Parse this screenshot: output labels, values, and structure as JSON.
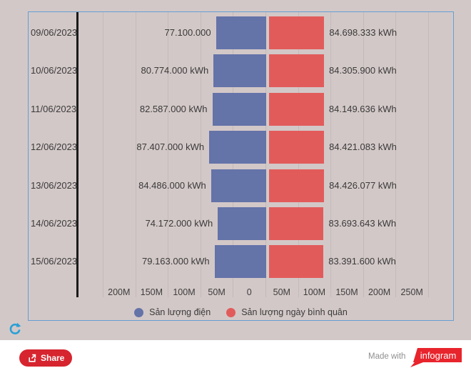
{
  "chart": {
    "rows": [
      {
        "date": "09/06/2023",
        "left_label": "77.100.000",
        "right_label": "84.698.333 kWh"
      },
      {
        "date": "10/06/2023",
        "left_label": "80.774.000 kWh",
        "right_label": "84.305.900 kWh"
      },
      {
        "date": "11/06/2023",
        "left_label": "82.587.000 kWh",
        "right_label": "84.149.636 kWh"
      },
      {
        "date": "12/06/2023",
        "left_label": "87.407.000 kWh",
        "right_label": "84.421.083 kWh"
      },
      {
        "date": "13/06/2023",
        "left_label": "84.486.000 kWh",
        "right_label": "84.426.077 kWh"
      },
      {
        "date": "14/06/2023",
        "left_label": "74.172.000 kWh",
        "right_label": "83.693.643 kWh"
      },
      {
        "date": "15/06/2023",
        "left_label": "79.163.000 kWh",
        "right_label": "83.391.600 kWh"
      }
    ],
    "axis_ticks": [
      "200M",
      "150M",
      "100M",
      "50M",
      "0",
      "50M",
      "100M",
      "150M",
      "200M",
      "250M"
    ],
    "legend": [
      {
        "label": "Sản lượng điện",
        "color": "#6473a8"
      },
      {
        "label": "Sản lượng ngày bình quân",
        "color": "#e25b5b"
      }
    ],
    "colors": {
      "left_bar": "#6473a8",
      "right_bar": "#e25b5b",
      "background": "#d3c8c8",
      "box_border": "#64a0d2",
      "gridline": "#c4baba",
      "axis_line": "#1b1b1b"
    }
  },
  "chart_data": {
    "type": "bar",
    "orientation": "horizontal-diverging",
    "categories": [
      "09/06/2023",
      "10/06/2023",
      "11/06/2023",
      "12/06/2023",
      "13/06/2023",
      "14/06/2023",
      "15/06/2023"
    ],
    "series": [
      {
        "name": "Sản lượng điện",
        "side": "left",
        "color": "#6473a8",
        "values": [
          77100000,
          80774000,
          82587000,
          87407000,
          84486000,
          74172000,
          79163000
        ]
      },
      {
        "name": "Sản lượng ngày bình quân",
        "side": "right",
        "color": "#e25b5b",
        "values": [
          84698333,
          84305900,
          84149636,
          84421083,
          84426077,
          83693643,
          83391600
        ]
      }
    ],
    "unit": "kWh",
    "x_axis": {
      "tick_labels": [
        "200M",
        "150M",
        "100M",
        "50M",
        "0",
        "50M",
        "100M",
        "150M",
        "200M",
        "250M"
      ],
      "grid": true
    },
    "legend_position": "bottom"
  },
  "footer": {
    "share_label": "Share",
    "made_with": "Made with",
    "logo_text": "infogram"
  }
}
